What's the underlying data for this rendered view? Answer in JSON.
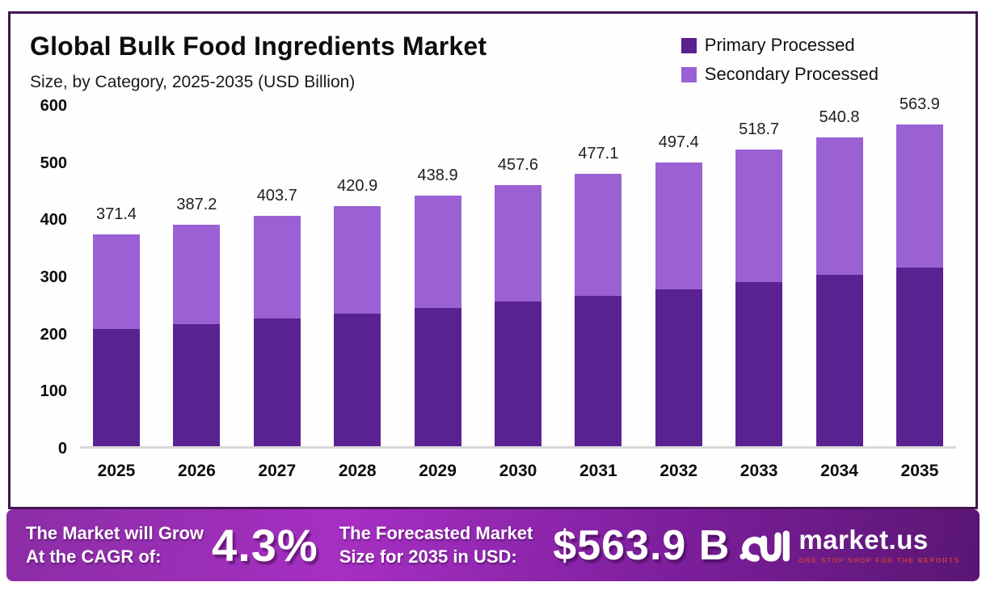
{
  "title": "Global Bulk Food Ingredients Market",
  "subtitle": "Size, by Category, 2025-2035 (USD Billion)",
  "legend": [
    {
      "label": "Primary Processed",
      "color": "#5a2191"
    },
    {
      "label": "Secondary Processed",
      "color": "#9a60d4"
    }
  ],
  "chart_data": {
    "type": "bar",
    "stacked": true,
    "title": "Global Bulk Food Ingredients Market",
    "subtitle": "Size, by Category, 2025-2035 (USD Billion)",
    "xlabel": "",
    "ylabel": "USD Billion",
    "ylim": [
      0,
      600
    ],
    "yticks": [
      0,
      100,
      200,
      300,
      400,
      500,
      600
    ],
    "grid": false,
    "legend_position": "top-right",
    "categories": [
      "2025",
      "2026",
      "2027",
      "2028",
      "2029",
      "2030",
      "2031",
      "2032",
      "2033",
      "2034",
      "2035"
    ],
    "series": [
      {
        "name": "Primary Processed",
        "color": "#5a2191",
        "values": [
          205.0,
          213.8,
          223.0,
          232.6,
          242.6,
          253.0,
          263.9,
          275.2,
          287.0,
          299.4,
          312.2
        ]
      },
      {
        "name": "Secondary Processed",
        "color": "#9a60d4",
        "values": [
          166.4,
          173.4,
          180.7,
          188.3,
          196.3,
          204.6,
          213.2,
          222.2,
          231.7,
          241.4,
          251.7
        ]
      }
    ],
    "totals": [
      371.4,
      387.2,
      403.7,
      420.9,
      438.9,
      457.6,
      477.1,
      497.4,
      518.7,
      540.8,
      563.9
    ]
  },
  "banner": {
    "cagr_line1": "The Market will Grow",
    "cagr_line2": "At the CAGR of:",
    "cagr_value": "4.3%",
    "forecast_line1": "The Forecasted Market",
    "forecast_line2": "Size for 2035 in USD:",
    "forecast_value": "$563.9 B",
    "logo_text": "market.us",
    "logo_tagline": "ONE STOP SHOP FOR THE REPORTS"
  },
  "colors": {
    "card_border": "#41164f",
    "axis_line": "#d8d8d8",
    "banner_text": "#ffffff",
    "logo_tagline_color": "#c43e3e"
  }
}
